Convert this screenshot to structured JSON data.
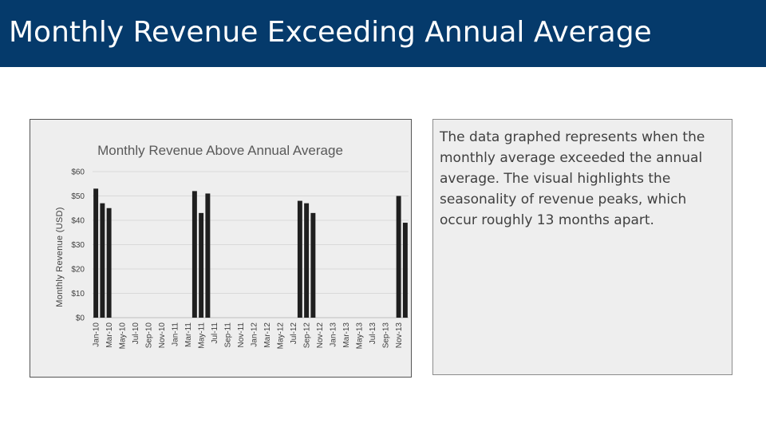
{
  "slide": {
    "title": "Monthly Revenue Exceeding Annual Average",
    "description": "The data graphed represents when the monthly average exceeded the annual average. The visual highlights the seasonality of revenue peaks, which occur roughly 13 months apart."
  },
  "colors": {
    "title_bar": "#053a6b",
    "bar": "#1f1f1f",
    "panel": "#eeeeee"
  },
  "chart_data": {
    "type": "bar",
    "title": "Monthly Revenue Above Annual Average",
    "xlabel": "",
    "ylabel": "Monthly Revenue (USD)",
    "ylim": [
      0,
      60
    ],
    "y_ticks": [
      "$0",
      "$10",
      "$20",
      "$30",
      "$40",
      "$50",
      "$60"
    ],
    "grid": true,
    "legend": "none",
    "categories": [
      "Jan-10",
      "Feb-10",
      "Mar-10",
      "Apr-10",
      "May-10",
      "Jun-10",
      "Jul-10",
      "Aug-10",
      "Sep-10",
      "Oct-10",
      "Nov-10",
      "Dec-10",
      "Jan-11",
      "Feb-11",
      "Mar-11",
      "Apr-11",
      "May-11",
      "Jun-11",
      "Jul-11",
      "Aug-11",
      "Sep-11",
      "Oct-11",
      "Nov-11",
      "Dec-11",
      "Jan-12",
      "Feb-12",
      "Mar-12",
      "Apr-12",
      "May-12",
      "Jun-12",
      "Jul-12",
      "Aug-12",
      "Sep-12",
      "Oct-12",
      "Nov-12",
      "Dec-12",
      "Jan-13",
      "Feb-13",
      "Mar-13",
      "Apr-13",
      "May-13",
      "Jun-13",
      "Jul-13",
      "Aug-13",
      "Sep-13",
      "Oct-13",
      "Nov-13",
      "Dec-13"
    ],
    "x_tick_labels": [
      "Jan-10",
      "Mar-10",
      "May-10",
      "Jul-10",
      "Sep-10",
      "Nov-10",
      "Jan-11",
      "Mar-11",
      "May-11",
      "Jul-11",
      "Sep-11",
      "Nov-11",
      "Jan-12",
      "Mar-12",
      "May-12",
      "Jul-12",
      "Sep-12",
      "Nov-12",
      "Jan-13",
      "Mar-13",
      "May-13",
      "Jul-13",
      "Sep-13",
      "Nov-13"
    ],
    "values": [
      53,
      47,
      45,
      0,
      0,
      0,
      0,
      0,
      0,
      0,
      0,
      0,
      0,
      0,
      0,
      52,
      43,
      51,
      0,
      0,
      0,
      0,
      0,
      0,
      0,
      0,
      0,
      0,
      0,
      0,
      0,
      48,
      47,
      43,
      0,
      0,
      0,
      0,
      0,
      0,
      0,
      0,
      0,
      0,
      0,
      0,
      50,
      39
    ]
  }
}
